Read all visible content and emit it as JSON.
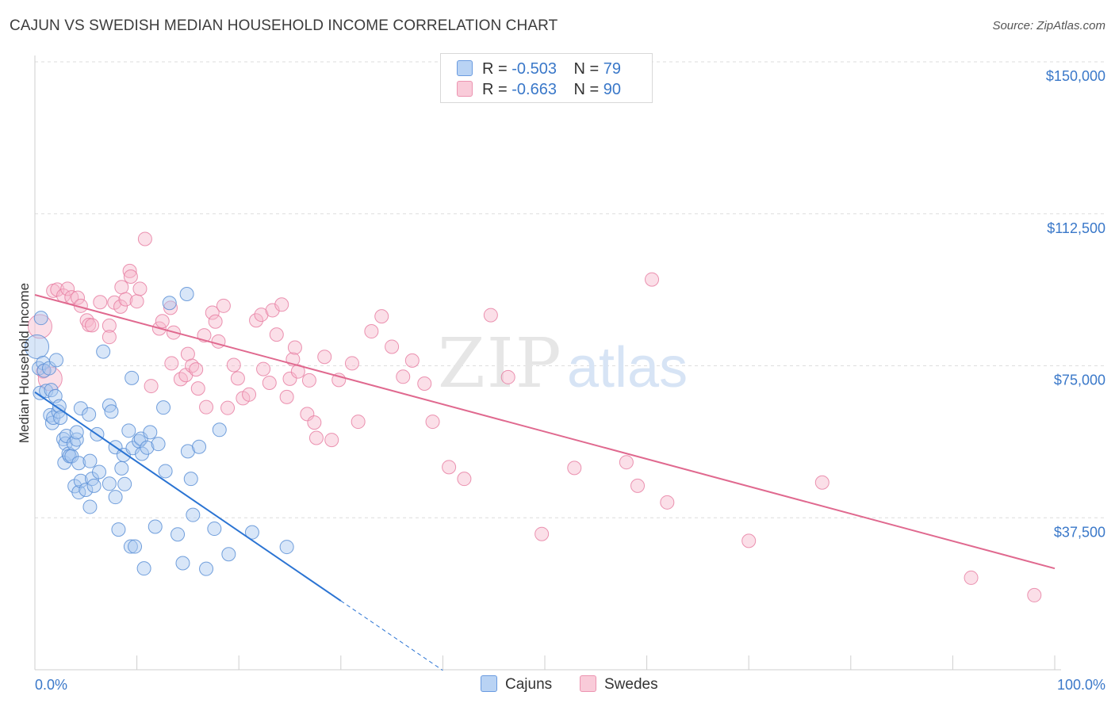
{
  "title": "CAJUN VS SWEDISH MEDIAN HOUSEHOLD INCOME CORRELATION CHART",
  "source": "Source: ZipAtlas.com",
  "watermark": {
    "zip": "ZIP",
    "atlas": "atlas"
  },
  "legend": {
    "r_label": "R =",
    "n_label": "N =",
    "series": [
      {
        "name": "Cajuns",
        "r": "-0.503",
        "n": "79"
      },
      {
        "name": "Swedes",
        "r": "-0.663",
        "n": "90"
      }
    ]
  },
  "colors": {
    "cajuns_fill": "#a9c8f0",
    "cajuns_stroke": "#5a8fd6",
    "cajuns_line": "#2b74d3",
    "swedes_fill": "#f6b9cc",
    "swedes_stroke": "#e880a3",
    "swedes_line": "#e0698f",
    "tick_text": "#3a78c9"
  },
  "chart_data": {
    "type": "scatter",
    "title": "CAJUN VS SWEDISH MEDIAN HOUSEHOLD INCOME CORRELATION CHART",
    "xlabel": "",
    "ylabel": "Median Household Income",
    "xlim": [
      0,
      100
    ],
    "ylim": [
      0,
      150000
    ],
    "x_tick_labels": [
      "0.0%",
      "100.0%"
    ],
    "y_ticks": [
      37500,
      75000,
      112500,
      150000
    ],
    "y_tick_labels": [
      "$37,500",
      "$75,000",
      "$112,500",
      "$150,000"
    ],
    "grid": true,
    "series": [
      {
        "name": "Cajuns",
        "trend": {
          "x0": 0,
          "y0": 68500,
          "x1": 30,
          "y1": 17000,
          "dash_to_x": 40
        },
        "points": [
          [
            0.2,
            79700
          ],
          [
            0.4,
            74400
          ],
          [
            0.5,
            68300
          ],
          [
            0.6,
            86800
          ],
          [
            0.8,
            75700
          ],
          [
            0.9,
            73800
          ],
          [
            1.1,
            68800
          ],
          [
            1.4,
            74400
          ],
          [
            1.5,
            62800
          ],
          [
            1.6,
            69000
          ],
          [
            1.7,
            60900
          ],
          [
            1.8,
            62200
          ],
          [
            2.0,
            67500
          ],
          [
            2.1,
            76400
          ],
          [
            2.3,
            63700
          ],
          [
            2.4,
            65000
          ],
          [
            2.5,
            62200
          ],
          [
            2.8,
            56900
          ],
          [
            2.9,
            51100
          ],
          [
            3.0,
            55800
          ],
          [
            3.1,
            57700
          ],
          [
            3.3,
            53300
          ],
          [
            3.4,
            52700
          ],
          [
            3.6,
            52700
          ],
          [
            3.8,
            55800
          ],
          [
            3.9,
            45300
          ],
          [
            4.1,
            56800
          ],
          [
            4.1,
            58600
          ],
          [
            4.3,
            51000
          ],
          [
            4.3,
            43800
          ],
          [
            4.5,
            46600
          ],
          [
            4.5,
            64500
          ],
          [
            5.0,
            44400
          ],
          [
            5.3,
            63000
          ],
          [
            5.4,
            51500
          ],
          [
            5.4,
            40200
          ],
          [
            5.6,
            47100
          ],
          [
            5.8,
            45400
          ],
          [
            6.3,
            48800
          ],
          [
            6.1,
            58100
          ],
          [
            6.7,
            78500
          ],
          [
            7.3,
            45900
          ],
          [
            7.3,
            65200
          ],
          [
            7.5,
            63700
          ],
          [
            7.9,
            54900
          ],
          [
            7.9,
            42600
          ],
          [
            8.2,
            34600
          ],
          [
            8.5,
            49700
          ],
          [
            8.7,
            53000
          ],
          [
            8.8,
            45800
          ],
          [
            9.2,
            59000
          ],
          [
            9.4,
            30400
          ],
          [
            9.5,
            72000
          ],
          [
            9.6,
            54700
          ],
          [
            9.8,
            30400
          ],
          [
            10.2,
            56400
          ],
          [
            10.4,
            57000
          ],
          [
            10.5,
            53300
          ],
          [
            10.7,
            25000
          ],
          [
            11.0,
            54800
          ],
          [
            11.3,
            58600
          ],
          [
            11.8,
            35300
          ],
          [
            12.1,
            55700
          ],
          [
            12.6,
            64700
          ],
          [
            12.8,
            49000
          ],
          [
            13.2,
            90500
          ],
          [
            14.0,
            33400
          ],
          [
            14.5,
            26300
          ],
          [
            14.9,
            92700
          ],
          [
            15.0,
            53900
          ],
          [
            15.3,
            47100
          ],
          [
            15.5,
            38200
          ],
          [
            16.1,
            55000
          ],
          [
            16.8,
            24900
          ],
          [
            17.6,
            34800
          ],
          [
            18.1,
            59200
          ],
          [
            19.0,
            28500
          ],
          [
            21.3,
            33900
          ],
          [
            24.7,
            30300
          ]
        ]
      },
      {
        "name": "Swedes",
        "trend": {
          "x0": 0,
          "y0": 92500,
          "x1": 100,
          "y1": 25000
        },
        "points": [
          [
            0.5,
            84700
          ],
          [
            0.8,
            73600
          ],
          [
            1.5,
            71800
          ],
          [
            1.8,
            93500
          ],
          [
            2.2,
            93800
          ],
          [
            2.8,
            92300
          ],
          [
            3.2,
            94000
          ],
          [
            3.6,
            91900
          ],
          [
            4.2,
            91800
          ],
          [
            4.5,
            89800
          ],
          [
            5.1,
            86200
          ],
          [
            5.3,
            85100
          ],
          [
            5.6,
            85000
          ],
          [
            6.4,
            90700
          ],
          [
            7.3,
            84900
          ],
          [
            7.3,
            82100
          ],
          [
            7.8,
            90600
          ],
          [
            8.4,
            89600
          ],
          [
            8.5,
            94400
          ],
          [
            8.9,
            91400
          ],
          [
            9.3,
            98400
          ],
          [
            9.4,
            97000
          ],
          [
            10.0,
            90900
          ],
          [
            10.3,
            94000
          ],
          [
            10.8,
            106300
          ],
          [
            11.4,
            70000
          ],
          [
            12.2,
            84200
          ],
          [
            12.5,
            86000
          ],
          [
            13.3,
            89300
          ],
          [
            13.4,
            75600
          ],
          [
            13.6,
            83200
          ],
          [
            14.3,
            71700
          ],
          [
            14.8,
            72700
          ],
          [
            15.0,
            77900
          ],
          [
            15.4,
            75000
          ],
          [
            15.8,
            74100
          ],
          [
            16.0,
            69400
          ],
          [
            16.6,
            82500
          ],
          [
            16.8,
            64800
          ],
          [
            17.4,
            88100
          ],
          [
            17.7,
            85900
          ],
          [
            18.0,
            81000
          ],
          [
            18.5,
            89800
          ],
          [
            18.9,
            64600
          ],
          [
            19.5,
            75200
          ],
          [
            19.9,
            71900
          ],
          [
            20.4,
            67000
          ],
          [
            21.0,
            67900
          ],
          [
            21.7,
            86200
          ],
          [
            22.2,
            87600
          ],
          [
            22.4,
            74200
          ],
          [
            23.0,
            70800
          ],
          [
            23.3,
            88700
          ],
          [
            23.7,
            82700
          ],
          [
            24.2,
            90100
          ],
          [
            24.7,
            67300
          ],
          [
            25.0,
            71800
          ],
          [
            25.3,
            76600
          ],
          [
            25.5,
            79500
          ],
          [
            25.8,
            73600
          ],
          [
            26.7,
            63100
          ],
          [
            26.9,
            71400
          ],
          [
            27.4,
            61000
          ],
          [
            27.6,
            57200
          ],
          [
            28.4,
            77200
          ],
          [
            29.1,
            56700
          ],
          [
            29.8,
            71500
          ],
          [
            31.1,
            75600
          ],
          [
            31.7,
            61200
          ],
          [
            33.0,
            83500
          ],
          [
            34.0,
            87200
          ],
          [
            35.0,
            79700
          ],
          [
            36.1,
            72300
          ],
          [
            37.0,
            76300
          ],
          [
            38.2,
            70600
          ],
          [
            39.0,
            61200
          ],
          [
            40.6,
            50000
          ],
          [
            42.1,
            47100
          ],
          [
            44.7,
            87500
          ],
          [
            46.4,
            72200
          ],
          [
            49.7,
            33500
          ],
          [
            52.9,
            49800
          ],
          [
            58.0,
            51200
          ],
          [
            59.1,
            45400
          ],
          [
            60.5,
            96300
          ],
          [
            62.0,
            41300
          ],
          [
            70.0,
            31800
          ],
          [
            77.2,
            46200
          ],
          [
            91.8,
            22700
          ],
          [
            98.0,
            18400
          ]
        ]
      }
    ]
  }
}
